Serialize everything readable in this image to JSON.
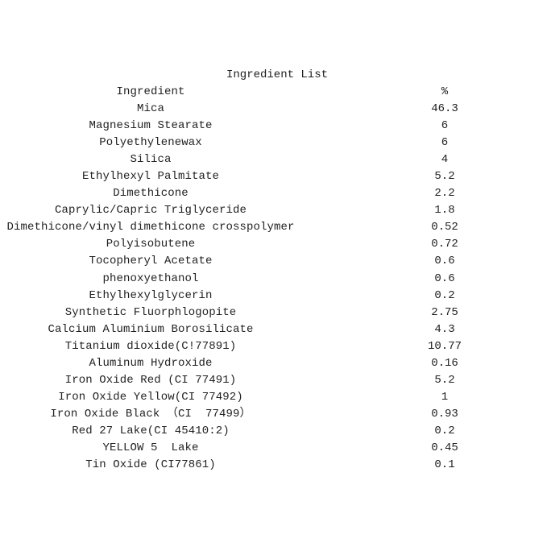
{
  "title": "Ingredient List",
  "header": {
    "ingredient": "Ingredient",
    "percent": "%"
  },
  "rows": [
    {
      "ingredient": "Mica",
      "percent": "46.3"
    },
    {
      "ingredient": "Magnesium Stearate",
      "percent": "6"
    },
    {
      "ingredient": "Polyethylenewax",
      "percent": "6"
    },
    {
      "ingredient": "Silica",
      "percent": "4"
    },
    {
      "ingredient": "Ethylhexyl Palmitate",
      "percent": "5.2"
    },
    {
      "ingredient": "Dimethicone",
      "percent": "2.2"
    },
    {
      "ingredient": "Caprylic/Capric Triglyceride",
      "percent": "1.8"
    },
    {
      "ingredient": "Dimethicone/vinyl dimethicone crosspolymer",
      "percent": "0.52"
    },
    {
      "ingredient": "Polyisobutene",
      "percent": "0.72"
    },
    {
      "ingredient": "Tocopheryl Acetate",
      "percent": "0.6"
    },
    {
      "ingredient": "phenoxyethanol",
      "percent": "0.6"
    },
    {
      "ingredient": "Ethylhexylglycerin",
      "percent": "0.2"
    },
    {
      "ingredient": "Synthetic Fluorphlogopite",
      "percent": "2.75"
    },
    {
      "ingredient": "Calcium Aluminium Borosilicate",
      "percent": "4.3"
    },
    {
      "ingredient": "Titanium dioxide(C!77891)",
      "percent": "10.77"
    },
    {
      "ingredient": "Aluminum Hydroxide",
      "percent": "0.16"
    },
    {
      "ingredient": "Iron Oxide Red (CI 77491)",
      "percent": "5.2"
    },
    {
      "ingredient": "Iron Oxide Yellow(CI 77492)",
      "percent": "1"
    },
    {
      "ingredient": "Iron Oxide Black （CI  77499）",
      "percent": "0.93"
    },
    {
      "ingredient": "Red 27 Lake(CI 45410:2)",
      "percent": "0.2"
    },
    {
      "ingredient": "YELLOW 5  Lake",
      "percent": "0.45"
    },
    {
      "ingredient": "Tin Oxide (CI77861)",
      "percent": "0.1"
    }
  ]
}
